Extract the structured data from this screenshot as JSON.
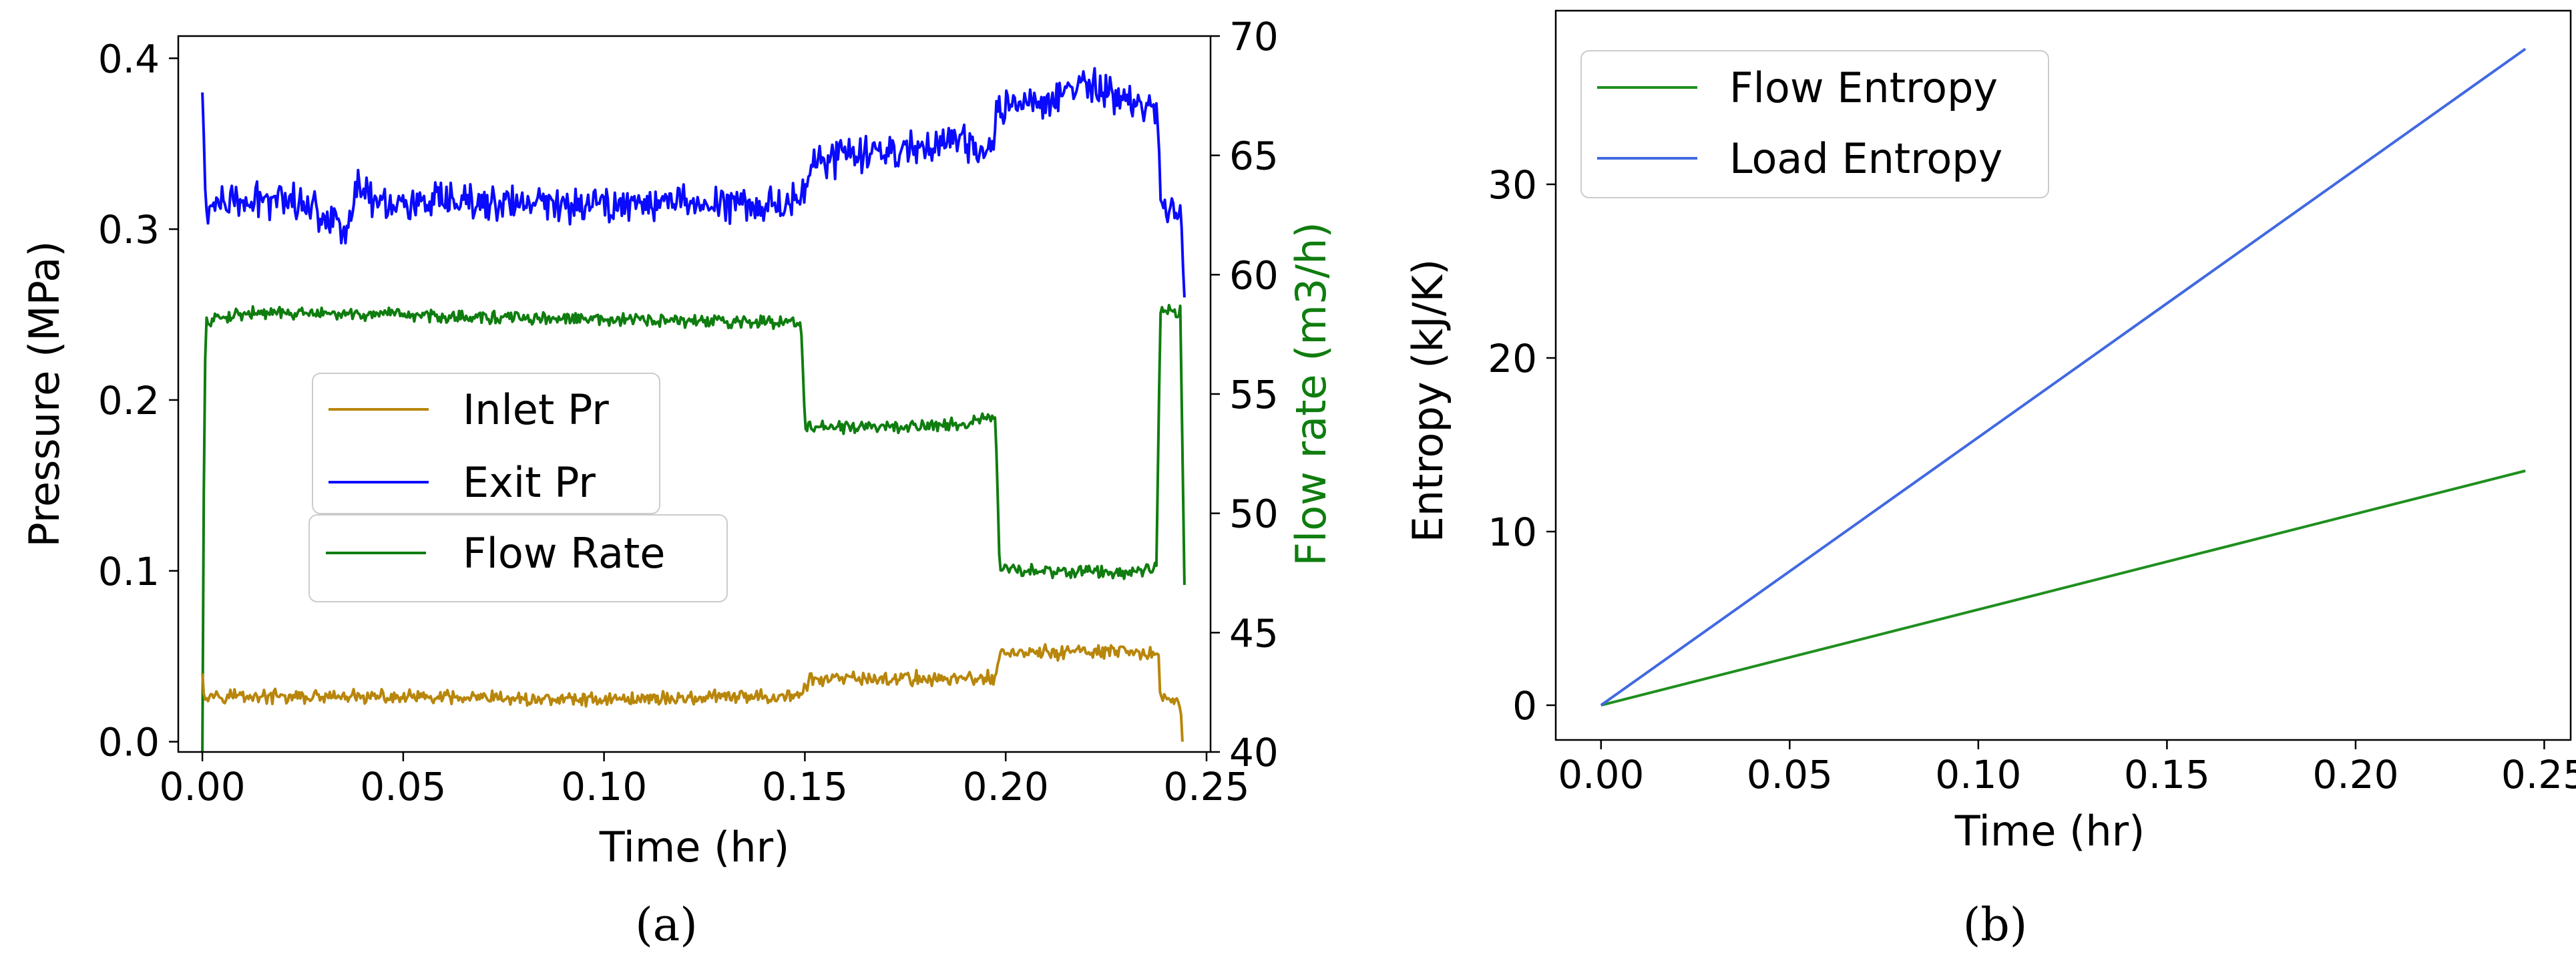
{
  "chart_data": [
    {
      "id": "a",
      "type": "line",
      "panel_label": "(a)",
      "title": "",
      "xlabel": "Time (hr)",
      "ylabel": "Pressure (MPa)",
      "ylabel_right": "Flow rate (m3/h)",
      "xlim": [
        -0.006,
        0.251
      ],
      "ylim": [
        -0.006,
        0.413
      ],
      "ylim_right": [
        40,
        70
      ],
      "xticks": [
        0.0,
        0.05,
        0.1,
        0.15,
        0.2,
        0.25
      ],
      "xtick_labels": [
        "0.00",
        "0.05",
        "0.10",
        "0.15",
        "0.20",
        "0.25"
      ],
      "yticks": [
        0.0,
        0.1,
        0.2,
        0.3,
        0.4
      ],
      "ytick_labels": [
        "0.0",
        "0.1",
        "0.2",
        "0.3",
        "0.4"
      ],
      "yticks_right": [
        40,
        45,
        50,
        55,
        60,
        65,
        70
      ],
      "ytick_labels_right": [
        "40",
        "45",
        "50",
        "55",
        "60",
        "65",
        "70"
      ],
      "grid": false,
      "series": [
        {
          "name": "Inlet Pr",
          "axis": "left",
          "color": "#b8860b",
          "x": [
            0.0,
            0.0003,
            0.02,
            0.05,
            0.08,
            0.1,
            0.13,
            0.149,
            0.151,
            0.17,
            0.197,
            0.199,
            0.21,
            0.22,
            0.238,
            0.2385,
            0.2435,
            0.244
          ],
          "y": [
            0.04,
            0.028,
            0.026,
            0.026,
            0.025,
            0.025,
            0.026,
            0.027,
            0.036,
            0.037,
            0.037,
            0.052,
            0.052,
            0.053,
            0.051,
            0.027,
            0.023,
            0.0
          ],
          "noise": 0.005
        },
        {
          "name": "Exit Pr",
          "axis": "left",
          "color": "#0a0aff",
          "x": [
            0.0,
            0.0003,
            0.0008,
            0.005,
            0.012,
            0.02,
            0.03,
            0.036,
            0.038,
            0.045,
            0.06,
            0.08,
            0.1,
            0.12,
            0.14,
            0.149,
            0.151,
            0.17,
            0.185,
            0.196,
            0.198,
            0.21,
            0.22,
            0.23,
            0.238,
            0.2385,
            0.2435,
            0.2445
          ],
          "y": [
            0.38,
            0.36,
            0.31,
            0.315,
            0.315,
            0.32,
            0.31,
            0.3,
            0.325,
            0.315,
            0.315,
            0.315,
            0.315,
            0.316,
            0.315,
            0.316,
            0.34,
            0.345,
            0.352,
            0.345,
            0.37,
            0.375,
            0.385,
            0.375,
            0.37,
            0.315,
            0.31,
            0.26
          ],
          "noise": 0.013
        },
        {
          "name": "Flow Rate",
          "axis": "right",
          "color": "#0f7d0f",
          "x": [
            0.0,
            0.0003,
            0.0008,
            0.01,
            0.05,
            0.1,
            0.149,
            0.1495,
            0.15,
            0.17,
            0.19,
            0.1975,
            0.1985,
            0.21,
            0.23,
            0.2375,
            0.2385,
            0.2435,
            0.2445
          ],
          "y": [
            40.0,
            50.0,
            58.0,
            58.4,
            58.3,
            58.1,
            58.0,
            56.0,
            53.6,
            53.6,
            53.8,
            54.0,
            47.6,
            47.6,
            47.5,
            47.8,
            58.5,
            58.5,
            47.0
          ],
          "noise": 0.32
        }
      ],
      "legends": [
        {
          "entries": [
            "Inlet Pr",
            "Exit Pr"
          ]
        },
        {
          "entries": [
            "Flow Rate"
          ]
        }
      ]
    },
    {
      "id": "b",
      "type": "line",
      "panel_label": "(b)",
      "title": "",
      "xlabel": "Time (hr)",
      "ylabel": "Entropy (kJ/K)",
      "xlim": [
        -0.012,
        0.257
      ],
      "ylim": [
        -2.0,
        40.0
      ],
      "xticks": [
        0.0,
        0.05,
        0.1,
        0.15,
        0.2,
        0.25
      ],
      "xtick_labels": [
        "0.00",
        "0.05",
        "0.10",
        "0.15",
        "0.20",
        "0.25"
      ],
      "yticks": [
        0,
        10,
        20,
        30
      ],
      "ytick_labels": [
        "0",
        "10",
        "20",
        "30"
      ],
      "grid": false,
      "legend_position": "top-left",
      "series": [
        {
          "name": "Flow Entropy",
          "color": "#1f8f1f",
          "x": [
            0.0,
            0.245
          ],
          "y": [
            0.0,
            13.5
          ]
        },
        {
          "name": "Load Entropy",
          "color": "#4169e1",
          "x": [
            0.0,
            0.245
          ],
          "y": [
            0.0,
            37.8
          ]
        }
      ]
    }
  ]
}
